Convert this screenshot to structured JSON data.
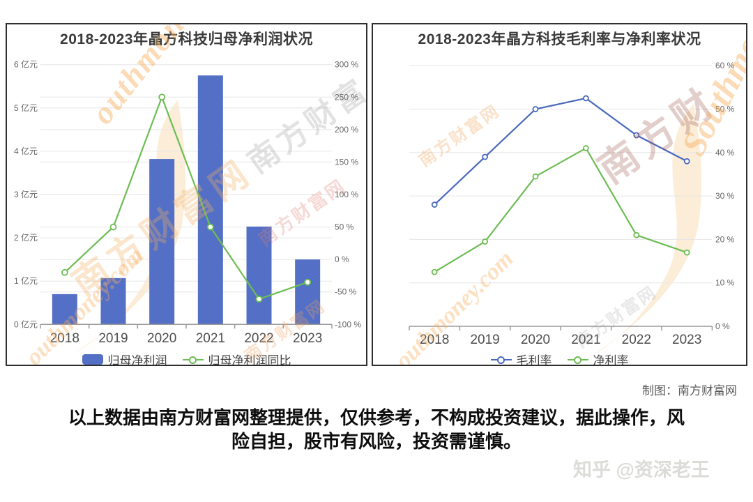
{
  "page": {
    "credit": "制图：南方财富网",
    "disclaimer_line1": "以上数据由南方财富网整理提供，仅供参考，不构成投资建议，据此操作，风",
    "disclaimer_line2": "险自担，股市有风险，投资需谨慎。",
    "author_watermark": "知乎 @资深老王"
  },
  "watermarks": {
    "site_name": "南方财富网",
    "site_name_short": "南方财富",
    "site_name_min": "南方财",
    "script_text": "outhmoney.com",
    "script_text2": "Southmoney",
    "accent_orange": "#f5a74d",
    "accent_red": "#dd8078"
  },
  "chart_data": [
    {
      "id": "net-profit",
      "type": "bar",
      "title": "2018-2023年晶方科技归母净利润状况",
      "categories": [
        "2018",
        "2019",
        "2020",
        "2021",
        "2022",
        "2023"
      ],
      "series": [
        {
          "name": "归母净利润",
          "type": "bar",
          "unit": "亿元",
          "color": "#5470c6",
          "values": [
            0.7,
            1.07,
            3.82,
            5.75,
            2.26,
            1.5
          ]
        },
        {
          "name": "归母净利润同比",
          "type": "line",
          "unit": "%",
          "color": "#6cbd53",
          "values": [
            -20,
            50,
            250,
            50,
            -61,
            -35
          ]
        }
      ],
      "left_axis": {
        "title": "亿元",
        "min": 0,
        "max": 6,
        "ticks": [
          "6 亿元",
          "5 亿元",
          "4 亿元",
          "3 亿元",
          "2 亿元",
          "1 亿元",
          "0 亿元"
        ]
      },
      "right_axis": {
        "title": "%",
        "min": -100,
        "max": 300,
        "ticks": [
          "300 %",
          "250 %",
          "200 %",
          "150 %",
          "100 %",
          "50 %",
          "0 %",
          "-50 %",
          "-100 %"
        ]
      },
      "grid": true,
      "legend_position": "bottom"
    },
    {
      "id": "margins",
      "type": "line",
      "title": "2018-2023年晶方科技毛利率与净利率状况",
      "categories": [
        "2018",
        "2019",
        "2020",
        "2021",
        "2022",
        "2023"
      ],
      "series": [
        {
          "name": "毛利率",
          "type": "line",
          "unit": "%",
          "color": "#4a69bd",
          "values": [
            28,
            39,
            50,
            52.5,
            44,
            38
          ]
        },
        {
          "name": "净利率",
          "type": "line",
          "unit": "%",
          "color": "#6cbd53",
          "values": [
            12.5,
            19.5,
            34.5,
            41,
            21,
            17
          ]
        }
      ],
      "right_axis": {
        "title": "%",
        "min": 0,
        "max": 60,
        "ticks": [
          "60 %",
          "50 %",
          "40 %",
          "30 %",
          "20 %",
          "10 %",
          "0 %"
        ]
      },
      "grid": true,
      "legend_position": "bottom"
    }
  ]
}
